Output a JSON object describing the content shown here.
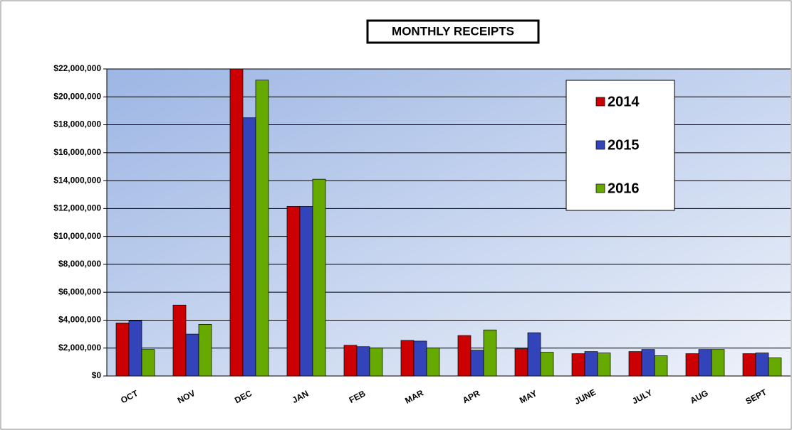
{
  "chart_data": {
    "type": "bar",
    "title": "MONTHLY RECEIPTS",
    "categories": [
      "OCT",
      "NOV",
      "DEC",
      "JAN",
      "FEB",
      "MAR",
      "APR",
      "MAY",
      "JUNE",
      "JULY",
      "AUG",
      "SEPT"
    ],
    "series": [
      {
        "name": "2014",
        "color": "#cc0000",
        "values": [
          3800000,
          5080000,
          22000000,
          12150000,
          2200000,
          2550000,
          2900000,
          1950000,
          1600000,
          1750000,
          1600000,
          1600000
        ]
      },
      {
        "name": "2015",
        "color": "#3344bb",
        "values": [
          3950000,
          3000000,
          18500000,
          12150000,
          2100000,
          2500000,
          1850000,
          3100000,
          1750000,
          1900000,
          1900000,
          1650000
        ]
      },
      {
        "name": "2016",
        "color": "#66aa00",
        "values": [
          1900000,
          3700000,
          21200000,
          14100000,
          2000000,
          2000000,
          3300000,
          1700000,
          1650000,
          1450000,
          1900000,
          1300000
        ]
      }
    ],
    "ylim": [
      0,
      22000000
    ],
    "yticks": [
      {
        "value": 0,
        "label": "$0"
      },
      {
        "value": 2000000,
        "label": "$2,000,000"
      },
      {
        "value": 4000000,
        "label": "$4,000,000"
      },
      {
        "value": 6000000,
        "label": "$6,000,000"
      },
      {
        "value": 8000000,
        "label": "$8,000,000"
      },
      {
        "value": 10000000,
        "label": "$10,000,000"
      },
      {
        "value": 12000000,
        "label": "$12,000,000"
      },
      {
        "value": 14000000,
        "label": "$14,000,000"
      },
      {
        "value": 16000000,
        "label": "$16,000,000"
      },
      {
        "value": 18000000,
        "label": "$18,000,000"
      },
      {
        "value": 20000000,
        "label": "$20,000,000"
      },
      {
        "value": 22000000,
        "label": "$22,000,000"
      }
    ],
    "grid": true,
    "legend": "upper right"
  }
}
